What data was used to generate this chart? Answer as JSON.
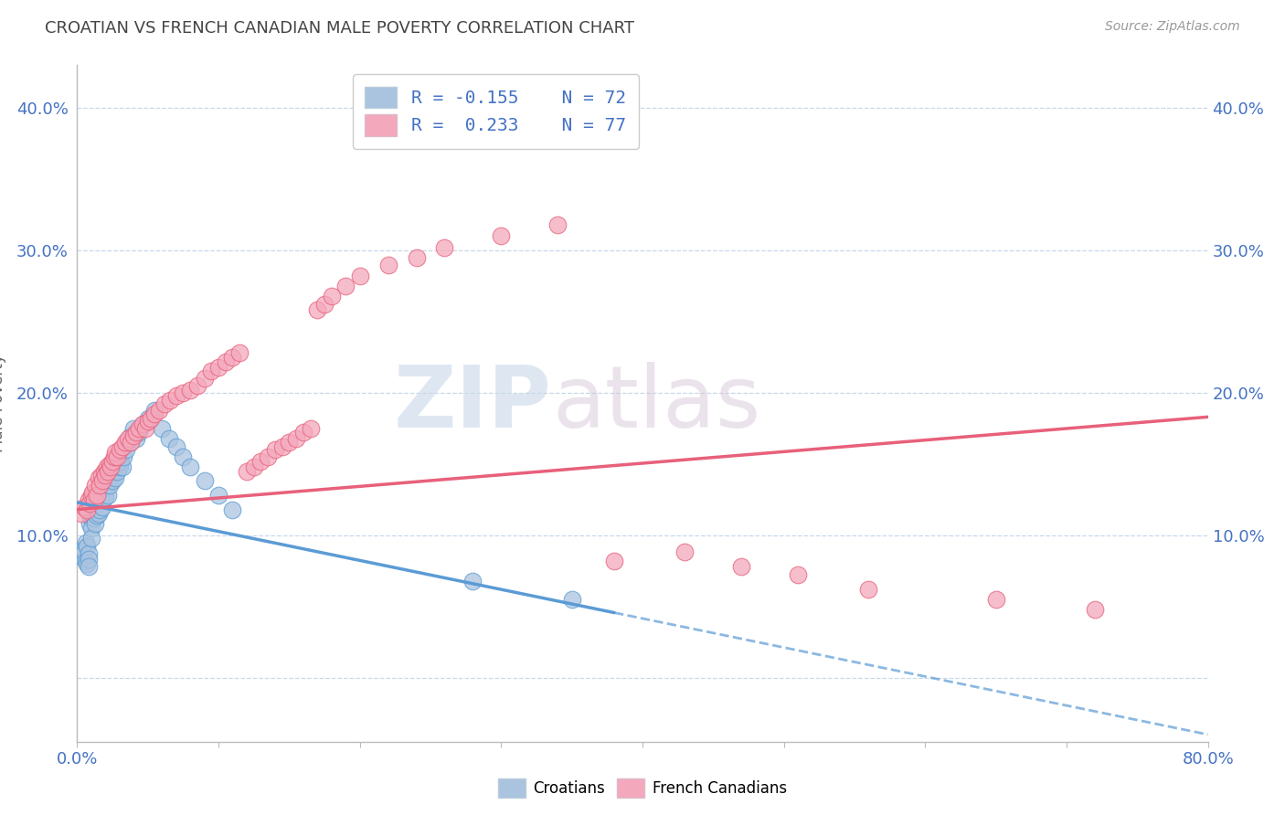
{
  "title": "CROATIAN VS FRENCH CANADIAN MALE POVERTY CORRELATION CHART",
  "source": "Source: ZipAtlas.com",
  "ylabel": "Male Poverty",
  "xmin": 0.0,
  "xmax": 0.8,
  "ymin": -0.045,
  "ymax": 0.43,
  "yticks": [
    0.0,
    0.1,
    0.2,
    0.3,
    0.4
  ],
  "ytick_labels_left": [
    "",
    "10.0%",
    "20.0%",
    "30.0%",
    "40.0%"
  ],
  "ytick_labels_right": [
    "",
    "10.0%",
    "20.0%",
    "30.0%",
    "40.0%"
  ],
  "croatian_color": "#aac4e0",
  "french_canadian_color": "#f4a8bc",
  "trend_croatian_color": "#5b9bd5",
  "trend_french_canadian_color": "#e8607a",
  "watermark_zip": "ZIP",
  "watermark_atlas": "atlas",
  "legend_R_croatian": "-0.155",
  "legend_N_croatian": "72",
  "legend_R_french": "0.233",
  "legend_N_french": "77",
  "croatian_R": -0.155,
  "french_R": 0.233,
  "trend_c_x0": 0.0,
  "trend_c_y0": 0.123,
  "trend_c_x1": 0.8,
  "trend_c_y1": -0.04,
  "trend_f_x0": 0.0,
  "trend_f_y0": 0.118,
  "trend_f_x1": 0.8,
  "trend_f_y1": 0.183,
  "trend_c_solid_end": 0.38,
  "croatian_x": [
    0.003,
    0.004,
    0.005,
    0.006,
    0.006,
    0.007,
    0.007,
    0.008,
    0.008,
    0.008,
    0.009,
    0.009,
    0.009,
    0.01,
    0.01,
    0.01,
    0.01,
    0.01,
    0.011,
    0.011,
    0.012,
    0.012,
    0.012,
    0.013,
    0.013,
    0.013,
    0.014,
    0.014,
    0.015,
    0.015,
    0.015,
    0.016,
    0.016,
    0.017,
    0.017,
    0.018,
    0.018,
    0.019,
    0.02,
    0.02,
    0.021,
    0.022,
    0.022,
    0.023,
    0.024,
    0.025,
    0.026,
    0.027,
    0.028,
    0.03,
    0.031,
    0.032,
    0.033,
    0.035,
    0.037,
    0.038,
    0.04,
    0.042,
    0.044,
    0.047,
    0.05,
    0.055,
    0.06,
    0.065,
    0.07,
    0.075,
    0.08,
    0.09,
    0.1,
    0.11,
    0.28,
    0.35
  ],
  "croatian_y": [
    0.085,
    0.09,
    0.088,
    0.082,
    0.095,
    0.08,
    0.092,
    0.087,
    0.083,
    0.078,
    0.12,
    0.115,
    0.108,
    0.125,
    0.118,
    0.112,
    0.105,
    0.098,
    0.122,
    0.115,
    0.13,
    0.122,
    0.112,
    0.128,
    0.119,
    0.108,
    0.125,
    0.114,
    0.132,
    0.124,
    0.115,
    0.128,
    0.118,
    0.135,
    0.125,
    0.13,
    0.12,
    0.128,
    0.138,
    0.127,
    0.135,
    0.14,
    0.128,
    0.135,
    0.142,
    0.138,
    0.145,
    0.14,
    0.145,
    0.148,
    0.152,
    0.148,
    0.155,
    0.16,
    0.165,
    0.17,
    0.175,
    0.168,
    0.172,
    0.178,
    0.182,
    0.188,
    0.175,
    0.168,
    0.162,
    0.155,
    0.148,
    0.138,
    0.128,
    0.118,
    0.068,
    0.055
  ],
  "french_x": [
    0.003,
    0.005,
    0.007,
    0.008,
    0.009,
    0.01,
    0.011,
    0.012,
    0.013,
    0.014,
    0.015,
    0.016,
    0.017,
    0.018,
    0.019,
    0.02,
    0.021,
    0.022,
    0.023,
    0.024,
    0.025,
    0.026,
    0.027,
    0.028,
    0.03,
    0.032,
    0.034,
    0.036,
    0.038,
    0.04,
    0.042,
    0.044,
    0.046,
    0.048,
    0.05,
    0.052,
    0.055,
    0.058,
    0.062,
    0.066,
    0.07,
    0.075,
    0.08,
    0.085,
    0.09,
    0.095,
    0.1,
    0.105,
    0.11,
    0.115,
    0.12,
    0.125,
    0.13,
    0.135,
    0.14,
    0.145,
    0.15,
    0.155,
    0.16,
    0.165,
    0.17,
    0.175,
    0.18,
    0.19,
    0.2,
    0.22,
    0.24,
    0.26,
    0.3,
    0.34,
    0.38,
    0.43,
    0.47,
    0.51,
    0.56,
    0.65,
    0.72
  ],
  "french_y": [
    0.115,
    0.12,
    0.118,
    0.125,
    0.122,
    0.128,
    0.13,
    0.125,
    0.135,
    0.128,
    0.14,
    0.135,
    0.142,
    0.138,
    0.145,
    0.142,
    0.148,
    0.145,
    0.15,
    0.148,
    0.152,
    0.155,
    0.158,
    0.155,
    0.16,
    0.162,
    0.165,
    0.168,
    0.165,
    0.17,
    0.172,
    0.175,
    0.178,
    0.175,
    0.18,
    0.182,
    0.185,
    0.188,
    0.192,
    0.195,
    0.198,
    0.2,
    0.202,
    0.205,
    0.21,
    0.215,
    0.218,
    0.222,
    0.225,
    0.228,
    0.145,
    0.148,
    0.152,
    0.155,
    0.16,
    0.162,
    0.165,
    0.168,
    0.172,
    0.175,
    0.258,
    0.262,
    0.268,
    0.275,
    0.282,
    0.29,
    0.295,
    0.302,
    0.31,
    0.318,
    0.082,
    0.088,
    0.078,
    0.072,
    0.062,
    0.055,
    0.048
  ]
}
